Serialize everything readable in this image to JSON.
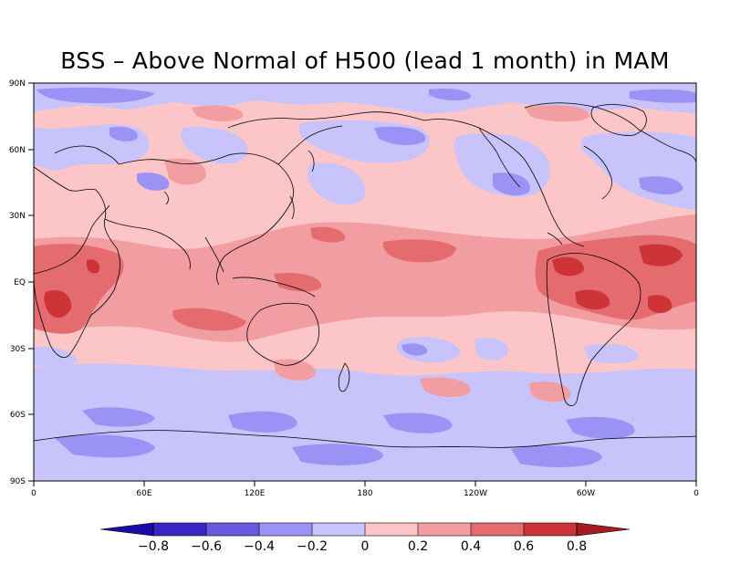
{
  "title": "BSS - Above Normal of H500 (lead 1 month) in MAM",
  "map": {
    "projection": "cylindrical equidistant",
    "lon_labels": [
      "0",
      "60E",
      "120E",
      "180",
      "120W",
      "60W",
      "0"
    ],
    "lat_labels": [
      "90N",
      "60N",
      "30N",
      "EQ",
      "30S",
      "60S",
      "90S"
    ],
    "contour_levels": [
      -0.8,
      -0.6,
      -0.4,
      -0.2,
      0,
      0.2,
      0.4,
      0.6,
      0.8
    ],
    "fill_colors": {
      "below_-0.8": "#1a0ca8",
      "-0.8_to_-0.6": "#3a25c4",
      "-0.6_to_-0.4": "#6a58e0",
      "-0.4_to_-0.2": "#9b92f5",
      "-0.2_to_0": "#c8c3fb",
      "0_to_0.2": "#fcc5c8",
      "0.2_to_0.4": "#f29da1",
      "0.4_to_0.6": "#e46b6e",
      "0.6_to_0.8": "#cc3438",
      "above_0.8": "#a51c20"
    }
  },
  "colorbar": {
    "labels": [
      "-0.8",
      "-0.6",
      "-0.4",
      "-0.2",
      "0",
      "0.2",
      "0.4",
      "0.6",
      "0.8"
    ],
    "colors": [
      "#1a0ca8",
      "#3a25c4",
      "#6a58e0",
      "#9b92f5",
      "#c8c3fb",
      "#fcc5c8",
      "#f29da1",
      "#e46b6e",
      "#cc3438",
      "#a51c20"
    ]
  }
}
